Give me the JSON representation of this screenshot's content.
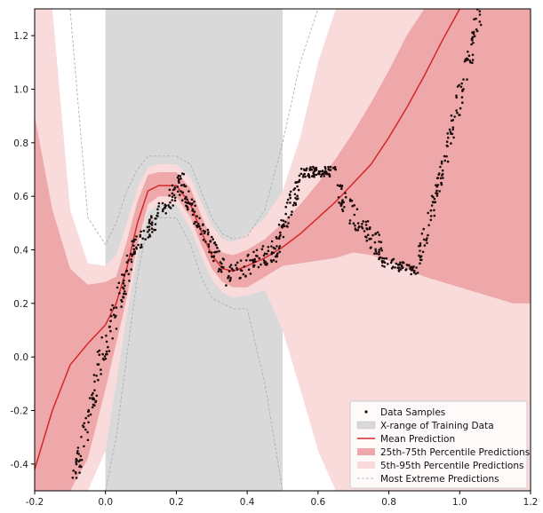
{
  "chart_data": {
    "type": "scatter",
    "title": "",
    "xlabel": "",
    "ylabel": "",
    "xlim": [
      -0.2,
      1.2
    ],
    "ylim": [
      -0.5,
      1.3
    ],
    "x_ticks": [
      "-0.2",
      "0.0",
      "0.2",
      "0.4",
      "0.6",
      "0.8",
      "1.0",
      "1.2"
    ],
    "y_ticks": [
      "-0.4",
      "-0.2",
      "0.0",
      "0.2",
      "0.4",
      "0.6",
      "0.8",
      "1.0",
      "1.2"
    ],
    "training_range": [
      0.0,
      0.5
    ],
    "legend_position": "bottom-right",
    "colors": {
      "samples": "#1a0a0a",
      "training_range": "#d9d9d9",
      "mean": "#d62728",
      "band_25_75": "#eea8aa",
      "band_5_95": "#f9dbdc",
      "extreme": "#aaaaaa"
    },
    "legend": [
      {
        "key": "samples",
        "label": "Data Samples"
      },
      {
        "key": "training",
        "label": "X-range of Training Data"
      },
      {
        "key": "mean",
        "label": "Mean Prediction"
      },
      {
        "key": "p25_75",
        "label": "25th-75th Percentile Predictions"
      },
      {
        "key": "p5_95",
        "label": "5th-95th Percentile Predictions"
      },
      {
        "key": "extreme",
        "label": "Most Extreme Predictions"
      }
    ],
    "series": {
      "mean": {
        "x": [
          -0.2,
          -0.15,
          -0.1,
          -0.05,
          0.0,
          0.03,
          0.06,
          0.09,
          0.12,
          0.15,
          0.2,
          0.24,
          0.27,
          0.3,
          0.33,
          0.36,
          0.4,
          0.45,
          0.5,
          0.55,
          0.6,
          0.65,
          0.7,
          0.75,
          0.8,
          0.85,
          0.9,
          0.95,
          1.0
        ],
        "y": [
          -0.42,
          -0.2,
          -0.03,
          0.05,
          0.12,
          0.2,
          0.33,
          0.5,
          0.62,
          0.64,
          0.64,
          0.57,
          0.47,
          0.38,
          0.33,
          0.32,
          0.34,
          0.37,
          0.41,
          0.46,
          0.52,
          0.58,
          0.65,
          0.72,
          0.82,
          0.93,
          1.05,
          1.18,
          1.3
        ]
      },
      "p25_75": {
        "x": [
          -0.2,
          -0.15,
          -0.1,
          -0.05,
          0.0,
          0.03,
          0.06,
          0.09,
          0.12,
          0.15,
          0.2,
          0.24,
          0.27,
          0.3,
          0.33,
          0.36,
          0.4,
          0.45,
          0.5,
          0.55,
          0.6,
          0.65,
          0.7,
          0.75,
          0.8,
          0.85,
          0.9,
          0.95,
          1.0,
          1.05,
          1.1,
          1.15,
          1.2
        ],
        "lower": [
          -0.5,
          -0.5,
          -0.5,
          -0.38,
          -0.12,
          0.05,
          0.22,
          0.42,
          0.57,
          0.6,
          0.6,
          0.52,
          0.42,
          0.33,
          0.28,
          0.26,
          0.26,
          0.3,
          0.34,
          0.35,
          0.36,
          0.37,
          0.39,
          0.38,
          0.36,
          0.33,
          0.3,
          0.28,
          0.26,
          0.24,
          0.22,
          0.2,
          0.2
        ],
        "upper": [
          0.9,
          0.55,
          0.33,
          0.27,
          0.28,
          0.3,
          0.43,
          0.58,
          0.68,
          0.69,
          0.69,
          0.63,
          0.53,
          0.44,
          0.39,
          0.38,
          0.4,
          0.44,
          0.5,
          0.57,
          0.65,
          0.74,
          0.84,
          0.95,
          1.07,
          1.2,
          1.3,
          1.3,
          1.3,
          1.3,
          1.3,
          1.3,
          1.3
        ]
      },
      "p5_95": {
        "x": [
          -0.2,
          -0.15,
          -0.1,
          -0.05,
          0.0,
          0.03,
          0.06,
          0.09,
          0.12,
          0.15,
          0.2,
          0.24,
          0.27,
          0.3,
          0.33,
          0.36,
          0.4,
          0.45,
          0.5,
          0.55,
          0.6,
          0.65,
          0.7,
          0.75,
          0.8,
          0.85,
          0.9,
          0.95,
          1.0,
          1.05,
          1.1,
          1.15,
          1.2
        ],
        "lower": [
          -0.5,
          -0.5,
          -0.5,
          -0.5,
          -0.35,
          -0.1,
          0.15,
          0.38,
          0.54,
          0.57,
          0.57,
          0.48,
          0.38,
          0.29,
          0.24,
          0.22,
          0.23,
          0.25,
          0.1,
          -0.12,
          -0.35,
          -0.5,
          -0.5,
          -0.5,
          -0.5,
          -0.5,
          -0.5,
          -0.5,
          -0.5,
          -0.5,
          -0.5,
          -0.5,
          -0.5
        ],
        "upper": [
          1.3,
          1.3,
          0.55,
          0.35,
          0.34,
          0.38,
          0.5,
          0.63,
          0.71,
          0.72,
          0.72,
          0.67,
          0.58,
          0.49,
          0.44,
          0.43,
          0.46,
          0.52,
          0.62,
          0.82,
          1.1,
          1.3,
          1.3,
          1.3,
          1.3,
          1.3,
          1.3,
          1.3,
          1.3,
          1.3,
          1.3,
          1.3,
          1.3
        ]
      },
      "extreme": {
        "x": [
          -0.2,
          -0.15,
          -0.1,
          -0.05,
          0.0,
          0.03,
          0.06,
          0.09,
          0.12,
          0.15,
          0.2,
          0.24,
          0.27,
          0.3,
          0.33,
          0.36,
          0.4,
          0.45,
          0.5,
          0.55,
          0.6
        ],
        "lower": [
          -0.5,
          -0.5,
          -0.5,
          -0.5,
          -0.5,
          -0.3,
          0.0,
          0.3,
          0.5,
          0.52,
          0.52,
          0.42,
          0.3,
          0.22,
          0.2,
          0.18,
          0.18,
          -0.1,
          -0.5,
          -0.5,
          -0.5
        ],
        "upper": [
          1.3,
          1.3,
          1.3,
          0.52,
          0.42,
          0.5,
          0.62,
          0.7,
          0.75,
          0.75,
          0.75,
          0.72,
          0.62,
          0.52,
          0.46,
          0.44,
          0.45,
          0.55,
          0.8,
          1.1,
          1.3
        ]
      },
      "samples": [
        {
          "x0": -0.1,
          "x1": -0.02,
          "y0": -0.55,
          "y1": -0.05,
          "n": 60,
          "noise": 0.07
        },
        {
          "x0": -0.02,
          "x1": 0.08,
          "y0": -0.05,
          "y1": 0.4,
          "n": 70,
          "noise": 0.07
        },
        {
          "x0": 0.08,
          "x1": 0.22,
          "y0": 0.4,
          "y1": 0.66,
          "n": 90,
          "noise": 0.04
        },
        {
          "x0": 0.22,
          "x1": 0.34,
          "y0": 0.62,
          "y1": 0.31,
          "n": 80,
          "noise": 0.04
        },
        {
          "x0": 0.34,
          "x1": 0.48,
          "y0": 0.3,
          "y1": 0.4,
          "n": 70,
          "noise": 0.04
        },
        {
          "x0": 0.48,
          "x1": 0.55,
          "y0": 0.4,
          "y1": 0.67,
          "n": 60,
          "noise": 0.05
        },
        {
          "x0": 0.55,
          "x1": 0.65,
          "y0": 0.69,
          "y1": 0.69,
          "n": 70,
          "noise": 0.02
        },
        {
          "x0": 0.65,
          "x1": 0.78,
          "y0": 0.62,
          "y1": 0.4,
          "n": 80,
          "noise": 0.05
        },
        {
          "x0": 0.78,
          "x1": 0.88,
          "y0": 0.36,
          "y1": 0.32,
          "n": 50,
          "noise": 0.02
        },
        {
          "x0": 0.88,
          "x1": 0.96,
          "y0": 0.34,
          "y1": 0.75,
          "n": 60,
          "noise": 0.05
        },
        {
          "x0": 0.96,
          "x1": 1.06,
          "y0": 0.75,
          "y1": 1.3,
          "n": 70,
          "noise": 0.06
        }
      ]
    }
  }
}
